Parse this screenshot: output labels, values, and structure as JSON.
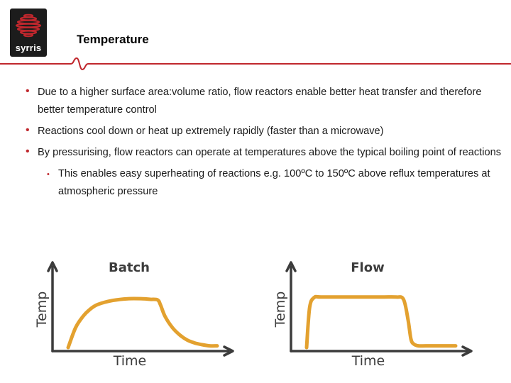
{
  "logo": {
    "text": "syrris",
    "icon": "coiled-reactor-logo"
  },
  "slide": {
    "title": "Temperature"
  },
  "bullets": [
    {
      "level": 1,
      "text": "Due to a higher surface area:volume ratio, flow reactors enable better heat transfer and therefore better temperature control"
    },
    {
      "level": 1,
      "text": "Reactions cool down or heat up extremely rapidly (faster than a microwave)"
    },
    {
      "level": 1,
      "text": "By pressurising, flow reactors can operate at temperatures above the typical boiling point of reactions"
    },
    {
      "level": 2,
      "text": "This enables easy superheating of reactions e.g. 100ºC to 150ºC above reflux temperatures at atmospheric pressure"
    }
  ],
  "colors": {
    "accent": "#c0272d",
    "curve": "#e3a12f",
    "axis": "#3c3c3c"
  },
  "chart_data": [
    {
      "type": "line",
      "title": "Batch",
      "xlabel": "Time",
      "ylabel": "Temp",
      "x": [
        0.0,
        0.05,
        0.1,
        0.15,
        0.2,
        0.3,
        0.4,
        0.5,
        0.55,
        0.6,
        0.62,
        0.65,
        0.7,
        0.75,
        0.8,
        0.85,
        0.9,
        0.95,
        1.0
      ],
      "y": [
        0.0,
        0.35,
        0.55,
        0.68,
        0.76,
        0.83,
        0.86,
        0.86,
        0.85,
        0.84,
        0.75,
        0.55,
        0.35,
        0.22,
        0.13,
        0.08,
        0.05,
        0.03,
        0.03
      ]
    },
    {
      "type": "line",
      "title": "Flow",
      "xlabel": "Time",
      "ylabel": "Temp",
      "x": [
        0.0,
        0.02,
        0.05,
        0.1,
        0.3,
        0.5,
        0.6,
        0.65,
        0.68,
        0.7,
        0.72,
        0.75,
        0.8,
        0.9,
        1.0
      ],
      "y": [
        0.0,
        0.7,
        0.88,
        0.89,
        0.89,
        0.89,
        0.89,
        0.85,
        0.5,
        0.15,
        0.06,
        0.03,
        0.03,
        0.03,
        0.03
      ]
    }
  ]
}
